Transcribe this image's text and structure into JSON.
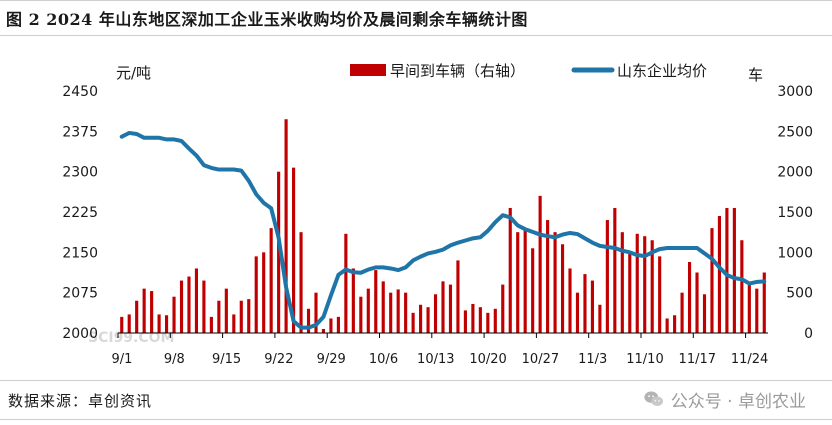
{
  "title": "图 2  2024 年山东地区深加工企业玉米收购均价及晨间剩余车辆统计图",
  "source": "数据来源：卓创资讯",
  "watermark": {
    "icon": "wechat-icon",
    "text": "公众号 · 卓创农业",
    "chart_logo": "SCI99.COM"
  },
  "colors": {
    "bars": "#c00000",
    "line": "#1f75a8",
    "axis": "#000000"
  },
  "chart_data": {
    "type": "bar",
    "left_unit": "元/吨",
    "right_unit": "车",
    "y_left_lim": [
      2000,
      2450
    ],
    "y_left_ticks": [
      2000,
      2075,
      2150,
      2225,
      2300,
      2375,
      2450
    ],
    "y_right_lim": [
      0,
      3000
    ],
    "y_right_ticks": [
      0,
      500,
      1000,
      1500,
      2000,
      2500,
      3000
    ],
    "x_tick_labels": [
      "9/1",
      "9/8",
      "9/15",
      "9/22",
      "9/29",
      "10/6",
      "10/13",
      "10/20",
      "10/27",
      "11/3",
      "11/10",
      "11/17",
      "11/24"
    ],
    "x_tick_indices": [
      0,
      7,
      14,
      21,
      28,
      35,
      42,
      49,
      56,
      63,
      70,
      77,
      84
    ],
    "legend_position": "top",
    "series": [
      {
        "name": "早间到车辆（右轴）",
        "type": "bar",
        "axis": "right",
        "values": [
          200,
          230,
          400,
          550,
          520,
          230,
          220,
          450,
          650,
          700,
          800,
          650,
          200,
          400,
          550,
          230,
          400,
          420,
          950,
          1000,
          1300,
          2000,
          2650,
          2050,
          1250,
          300,
          500,
          50,
          180,
          200,
          1230,
          800,
          450,
          550,
          780,
          640,
          500,
          540,
          500,
          250,
          350,
          320,
          480,
          640,
          600,
          900,
          280,
          360,
          320,
          250,
          300,
          600,
          1550,
          1250,
          1300,
          1050,
          1700,
          1400,
          1250,
          1100,
          800,
          500,
          730,
          650,
          350,
          1400,
          1550,
          1250,
          1000,
          1230,
          1200,
          1150,
          950,
          180,
          220,
          500,
          880,
          750,
          480,
          1300,
          1450,
          1550,
          1550,
          1150,
          600,
          550,
          750
        ]
      },
      {
        "name": "山东企业均价",
        "type": "line",
        "axis": "left",
        "values": [
          2365,
          2372,
          2370,
          2363,
          2363,
          2363,
          2360,
          2360,
          2357,
          2343,
          2330,
          2312,
          2307,
          2304,
          2304,
          2304,
          2302,
          2283,
          2258,
          2242,
          2232,
          2177,
          2085,
          2022,
          2010,
          2010,
          2015,
          2030,
          2070,
          2108,
          2118,
          2113,
          2112,
          2118,
          2122,
          2122,
          2120,
          2117,
          2122,
          2135,
          2142,
          2148,
          2151,
          2155,
          2163,
          2168,
          2172,
          2176,
          2178,
          2190,
          2206,
          2219,
          2215,
          2200,
          2193,
          2188,
          2183,
          2180,
          2178,
          2183,
          2186,
          2184,
          2176,
          2168,
          2162,
          2160,
          2158,
          2153,
          2150,
          2145,
          2143,
          2150,
          2156,
          2158,
          2158,
          2158,
          2158,
          2158,
          2148,
          2138,
          2122,
          2108,
          2102,
          2100,
          2092,
          2095,
          2096
        ]
      }
    ]
  }
}
